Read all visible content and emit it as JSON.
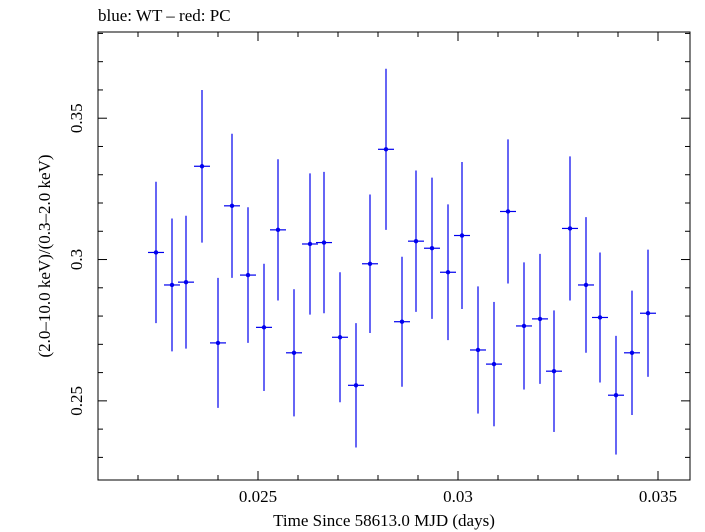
{
  "chart_data": {
    "type": "scatter",
    "title": "blue: WT – red: PC",
    "xlabel": "Time Since 58613.0 MJD (days)",
    "ylabel": "(2.0–10.0 keV)/(0.3–2.0 keV)",
    "xlim": [
      0.021,
      0.0358
    ],
    "ylim": [
      0.222,
      0.3805
    ],
    "xticks": [
      0.025,
      0.03,
      0.035
    ],
    "xtick_labels": [
      "0.025",
      "0.03",
      "0.035"
    ],
    "yticks": [
      0.25,
      0.3,
      0.35
    ],
    "ytick_labels": [
      "0.25",
      "0.3",
      "0.35"
    ],
    "grid": false,
    "series": [
      {
        "name": "WT",
        "color": "#0000ee",
        "x_halfwidth": 0.0002,
        "points": [
          {
            "x": 0.02245,
            "y": 0.3025,
            "err": 0.025
          },
          {
            "x": 0.02285,
            "y": 0.291,
            "err": 0.0235
          },
          {
            "x": 0.0232,
            "y": 0.292,
            "err": 0.0235
          },
          {
            "x": 0.0236,
            "y": 0.333,
            "err": 0.027
          },
          {
            "x": 0.024,
            "y": 0.2705,
            "err": 0.023
          },
          {
            "x": 0.02435,
            "y": 0.319,
            "err": 0.0255
          },
          {
            "x": 0.02475,
            "y": 0.2945,
            "err": 0.024
          },
          {
            "x": 0.02515,
            "y": 0.276,
            "err": 0.0225
          },
          {
            "x": 0.0255,
            "y": 0.3105,
            "err": 0.025
          },
          {
            "x": 0.0259,
            "y": 0.267,
            "err": 0.0225
          },
          {
            "x": 0.0263,
            "y": 0.3055,
            "err": 0.025
          },
          {
            "x": 0.02665,
            "y": 0.306,
            "err": 0.025
          },
          {
            "x": 0.02705,
            "y": 0.2725,
            "err": 0.023
          },
          {
            "x": 0.02745,
            "y": 0.2555,
            "err": 0.022
          },
          {
            "x": 0.0278,
            "y": 0.2985,
            "err": 0.0245
          },
          {
            "x": 0.0282,
            "y": 0.339,
            "err": 0.0285
          },
          {
            "x": 0.0286,
            "y": 0.278,
            "err": 0.023
          },
          {
            "x": 0.02895,
            "y": 0.3065,
            "err": 0.025
          },
          {
            "x": 0.02935,
            "y": 0.304,
            "err": 0.025
          },
          {
            "x": 0.02975,
            "y": 0.2955,
            "err": 0.024
          },
          {
            "x": 0.0301,
            "y": 0.3085,
            "err": 0.026
          },
          {
            "x": 0.0305,
            "y": 0.268,
            "err": 0.0225
          },
          {
            "x": 0.0309,
            "y": 0.263,
            "err": 0.022
          },
          {
            "x": 0.03125,
            "y": 0.317,
            "err": 0.0255
          },
          {
            "x": 0.03165,
            "y": 0.2765,
            "err": 0.0225
          },
          {
            "x": 0.03205,
            "y": 0.279,
            "err": 0.023
          },
          {
            "x": 0.0324,
            "y": 0.2605,
            "err": 0.0215
          },
          {
            "x": 0.0328,
            "y": 0.311,
            "err": 0.0255
          },
          {
            "x": 0.0332,
            "y": 0.291,
            "err": 0.024
          },
          {
            "x": 0.03355,
            "y": 0.2795,
            "err": 0.023
          },
          {
            "x": 0.03395,
            "y": 0.252,
            "err": 0.021
          },
          {
            "x": 0.03435,
            "y": 0.267,
            "err": 0.022
          },
          {
            "x": 0.03475,
            "y": 0.281,
            "err": 0.0225
          }
        ]
      }
    ]
  }
}
